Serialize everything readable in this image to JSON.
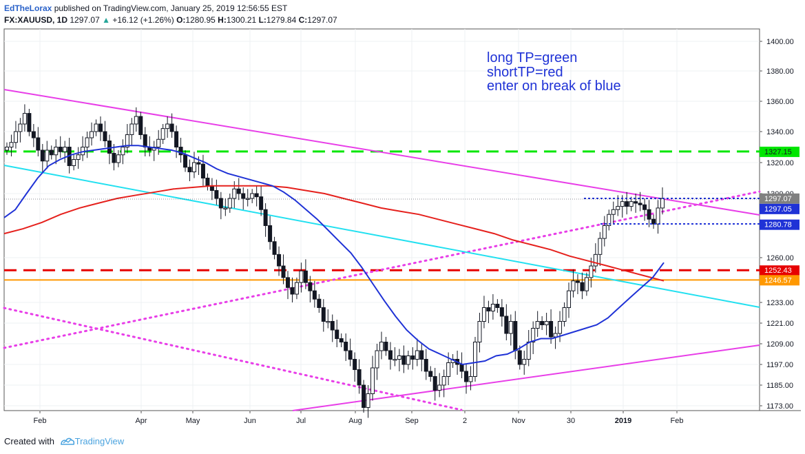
{
  "header": {
    "author": "EdTheLorax",
    "published": "published on TradingView.com, January 25, 2019 12:56:55 EST",
    "symbol": "FX:XAUUSD, 1D",
    "last": "1297.07",
    "change": "+16.12 (+1.26%)",
    "o_label": "O:",
    "o": "1280.95",
    "h_label": "H:",
    "h": "1300.21",
    "l_label": "L:",
    "l": "1279.84",
    "c_label": "C:",
    "c": "1297.07"
  },
  "annotation": [
    "long TP=green",
    "shortTP=red",
    "enter on break of blue"
  ],
  "footer": {
    "created_with": "Created with",
    "brand": "TradingView"
  },
  "colors": {
    "green_level": "#00e600",
    "red_level": "#e60000",
    "orange_level": "#ff9800",
    "magenta": "#e83ee8",
    "cyan": "#22e0f0",
    "blue_ma": "#1f32d6",
    "red_ma": "#e5201c",
    "price_tag": "#808080",
    "blue_tag": "#1f32d6",
    "candle": "#131722",
    "annotation": "#1f32d6"
  },
  "chart_data": {
    "type": "candlestick",
    "y_axis_ticks": [
      1400.0,
      1380.0,
      1360.0,
      1340.0,
      1320.0,
      1300.0,
      1260.0,
      1233.0,
      1221.0,
      1209.0,
      1197.0,
      1185.0,
      1173.0
    ],
    "x_axis_labels": [
      "Feb",
      "Apr",
      "May",
      "Jun",
      "Jul",
      "Aug",
      "Sep",
      "2",
      "Nov",
      "30",
      "2019",
      "Feb"
    ],
    "price_tags": [
      {
        "value": 1327.15,
        "label": "1327.15",
        "color": "#00e600",
        "text_color": "#131722"
      },
      {
        "value": 1297.07,
        "label": "1297.07",
        "color": "#808080",
        "text_color": "#ffffff"
      },
      {
        "value": 1297.05,
        "label": "1297.05",
        "color": "#1f32d6",
        "text_color": "#ffffff"
      },
      {
        "value": 1280.78,
        "label": "1280.78",
        "color": "#1f32d6",
        "text_color": "#ffffff"
      },
      {
        "value": 1252.43,
        "label": "1252.43",
        "color": "#e60000",
        "text_color": "#ffffff"
      },
      {
        "value": 1246.57,
        "label": "1246.57",
        "color": "#ff9800",
        "text_color": "#ffffff"
      }
    ],
    "horizontal_levels": [
      {
        "name": "long TP",
        "value": 1327.15,
        "color": "#00e600",
        "style": "dashed"
      },
      {
        "name": "short TP",
        "value": 1252.43,
        "color": "#e60000",
        "style": "dashed"
      },
      {
        "name": "support",
        "value": 1246.57,
        "color": "#ff9800",
        "style": "solid"
      }
    ],
    "close_series": [
      1330,
      1333,
      1340,
      1345,
      1352,
      1340,
      1336,
      1328,
      1321,
      1328,
      1325,
      1330,
      1327,
      1330,
      1318,
      1322,
      1325,
      1330,
      1336,
      1340,
      1345,
      1340,
      1334,
      1326,
      1320,
      1325,
      1330,
      1338,
      1345,
      1350,
      1338,
      1330,
      1328,
      1330,
      1335,
      1342,
      1345,
      1340,
      1330,
      1325,
      1317,
      1314,
      1320,
      1319,
      1310,
      1305,
      1302,
      1297,
      1291,
      1291,
      1297,
      1303,
      1300,
      1297,
      1297,
      1300,
      1298,
      1290,
      1280,
      1270,
      1262,
      1255,
      1248,
      1242,
      1238,
      1245,
      1252,
      1245,
      1240,
      1235,
      1230,
      1222,
      1222,
      1217,
      1212,
      1210,
      1205,
      1200,
      1194,
      1185,
      1172,
      1180,
      1195,
      1205,
      1210,
      1205,
      1200,
      1200,
      1202,
      1197,
      1202,
      1200,
      1205,
      1200,
      1193,
      1190,
      1182,
      1185,
      1190,
      1198,
      1200,
      1197,
      1193,
      1187,
      1190,
      1210,
      1222,
      1230,
      1228,
      1232,
      1230,
      1225,
      1215,
      1222,
      1205,
      1197,
      1200,
      1210,
      1218,
      1222,
      1220,
      1222,
      1213,
      1215,
      1222,
      1230,
      1240,
      1246,
      1245,
      1240,
      1248,
      1255,
      1262,
      1272,
      1280,
      1287,
      1290,
      1292,
      1295,
      1292,
      1295,
      1294,
      1293,
      1290,
      1284,
      1281,
      1291,
      1297
    ],
    "blue_ma_series": [
      1285,
      1290,
      1300,
      1310,
      1318,
      1322,
      1325,
      1327,
      1328,
      1329,
      1330,
      1331,
      1331,
      1330,
      1329,
      1328,
      1326,
      1323,
      1320,
      1316,
      1313,
      1311,
      1309,
      1307,
      1305,
      1301,
      1296,
      1290,
      1284,
      1277,
      1270,
      1263,
      1254,
      1244,
      1234,
      1225,
      1217,
      1211,
      1206,
      1203,
      1200,
      1197,
      1198,
      1199,
      1202,
      1203,
      1206,
      1210,
      1212,
      1212,
      1214,
      1216,
      1218,
      1220,
      1224,
      1230,
      1236,
      1242,
      1248,
      1257
    ],
    "red_ma_series": [
      1275,
      1278,
      1282,
      1287,
      1291,
      1294,
      1297,
      1299,
      1301,
      1303,
      1304,
      1305,
      1305,
      1305,
      1305,
      1304,
      1302,
      1300,
      1297,
      1294,
      1291,
      1289,
      1287,
      1284,
      1281,
      1278,
      1275,
      1271,
      1268,
      1265,
      1261,
      1258,
      1255,
      1252,
      1249,
      1246
    ],
    "trend_lines": [
      {
        "name": "magenta-descending",
        "color": "#e83ee8",
        "style": "solid"
      },
      {
        "name": "magenta-ascending-dotted",
        "color": "#e83ee8",
        "style": "dotted"
      },
      {
        "name": "magenta-lower-dotted",
        "color": "#e83ee8",
        "style": "dotted"
      },
      {
        "name": "magenta-lower-ascending",
        "color": "#e83ee8",
        "style": "solid"
      },
      {
        "name": "cyan-descending",
        "color": "#22e0f0",
        "style": "solid"
      }
    ]
  }
}
